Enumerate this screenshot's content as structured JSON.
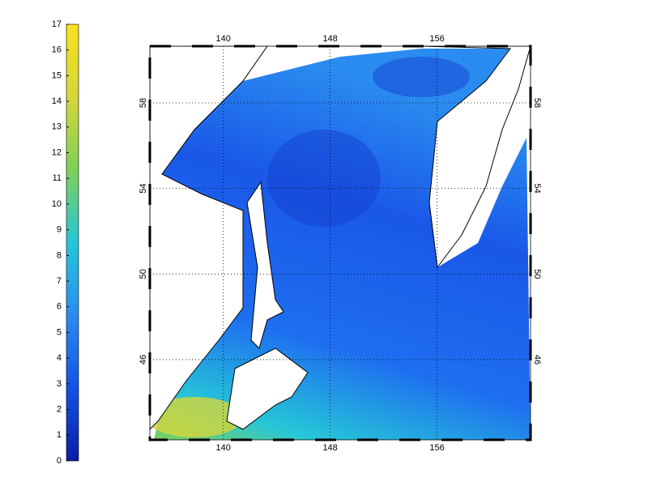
{
  "map": {
    "colorbar": {
      "clim": [
        0,
        17
      ],
      "ticks": [
        0,
        1,
        2,
        3,
        4,
        5,
        6,
        7,
        8,
        9,
        10,
        11,
        12,
        13,
        14,
        15,
        16,
        17
      ],
      "colormap": [
        "#0a1ea8",
        "#1452e6",
        "#2a8cf0",
        "#26c6d8",
        "#7ed05a",
        "#d6d63a",
        "#f7e21e"
      ]
    },
    "lonlim": [
      134.5,
      163
    ],
    "latlim": [
      42.25,
      60.65
    ],
    "lonticks": [
      140,
      148,
      156
    ],
    "latticks": [
      46,
      50,
      54,
      58
    ],
    "grid": true
  }
}
